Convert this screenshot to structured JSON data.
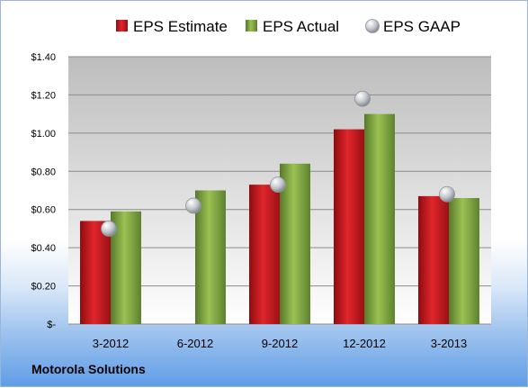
{
  "company_label": "Motorola Solutions",
  "colors": {
    "estimate": "#c4161c",
    "actual": "#7aa33a",
    "gaap": "#b9bec6"
  },
  "chart_data": {
    "type": "bar",
    "categories": [
      "3-2012",
      "6-2012",
      "9-2012",
      "12-2012",
      "3-2013"
    ],
    "series": [
      {
        "name": "EPS Estimate",
        "kind": "bar",
        "values": [
          0.54,
          null,
          0.73,
          1.02,
          0.67
        ]
      },
      {
        "name": "EPS Actual",
        "kind": "bar",
        "values": [
          0.59,
          0.7,
          0.84,
          1.1,
          0.66
        ]
      },
      {
        "name": "EPS GAAP",
        "kind": "marker",
        "values": [
          0.5,
          0.62,
          0.73,
          1.18,
          0.68
        ]
      }
    ],
    "ylim": [
      0,
      1.4
    ],
    "yticks": [
      0,
      0.2,
      0.4,
      0.6,
      0.8,
      1.0,
      1.2,
      1.4
    ],
    "ytick_labels": [
      "$-",
      "$0.20",
      "$0.40",
      "$0.60",
      "$0.80",
      "$1.00",
      "$1.20",
      "$1.40"
    ],
    "grid": true,
    "legend_position": "top"
  }
}
